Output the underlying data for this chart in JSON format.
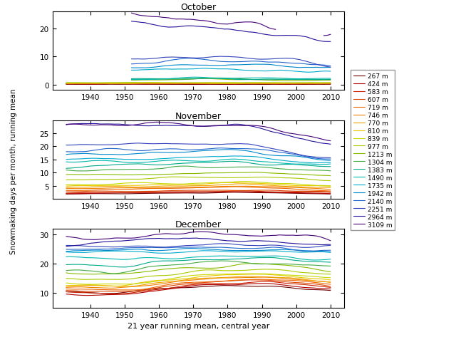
{
  "altitudes": [
    267,
    424,
    583,
    607,
    719,
    746,
    770,
    810,
    839,
    977,
    1213,
    1304,
    1383,
    1490,
    1735,
    1942,
    2140,
    2251,
    2964,
    3109
  ],
  "colors": [
    "#6B0000",
    "#B00000",
    "#CC2200",
    "#DD4400",
    "#EE6600",
    "#F08000",
    "#F0A000",
    "#E8C800",
    "#C8D800",
    "#AACB00",
    "#88BB00",
    "#44AA44",
    "#00AA88",
    "#00B8B0",
    "#00AACC",
    "#0088CC",
    "#2266CC",
    "#3344BB",
    "#221199",
    "#440077"
  ],
  "year_start": 1929,
  "year_end": 2014,
  "months": [
    "October",
    "November",
    "December"
  ],
  "title_fontsize": 9,
  "axis_label": "Snowmaking days per month, running mean",
  "xlabel": "21 year running mean, central year",
  "legend_fontsize": 6.5,
  "figsize": [
    6.4,
    4.81
  ],
  "oct_ylim": [
    -2,
    26
  ],
  "nov_ylim": [
    0,
    30
  ],
  "dec_ylim": [
    5,
    32
  ],
  "oct_yticks": [
    0,
    10,
    20
  ],
  "nov_yticks": [
    5,
    10,
    15,
    20,
    25
  ],
  "dec_yticks": [
    10,
    20,
    30
  ]
}
